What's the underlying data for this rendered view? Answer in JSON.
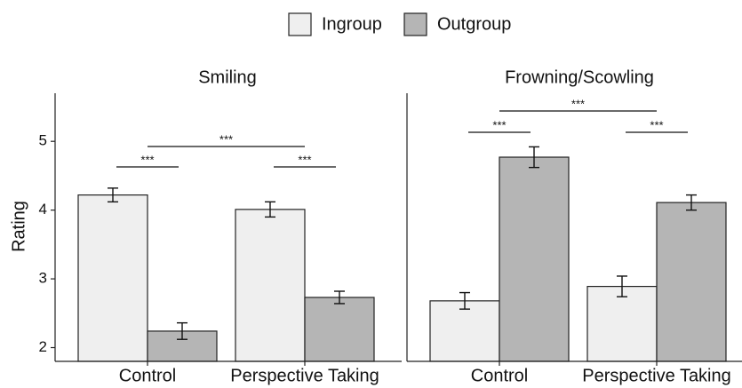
{
  "legend": {
    "position": "top"
  },
  "chart_data": [
    {
      "type": "bar",
      "title": "Smiling",
      "y_label": "Rating",
      "categories": [
        "Control",
        "Perspective Taking"
      ],
      "series": [
        {
          "name": "Ingroup",
          "color": "#efefef",
          "values": [
            4.22,
            4.01
          ],
          "errors": [
            0.1,
            0.11
          ]
        },
        {
          "name": "Outgroup",
          "color": "#b5b5b5",
          "values": [
            2.24,
            2.73
          ],
          "errors": [
            0.12,
            0.09
          ]
        }
      ],
      "ylim": [
        1.8,
        5.7
      ],
      "yticks": [
        2,
        3,
        4,
        5
      ],
      "annotations": [
        "***",
        "***",
        "***"
      ]
    },
    {
      "type": "bar",
      "title": "Frowning/Scowling",
      "categories": [
        "Control",
        "Perspective Taking"
      ],
      "series": [
        {
          "name": "Ingroup",
          "color": "#efefef",
          "values": [
            2.68,
            2.89
          ],
          "errors": [
            0.12,
            0.15
          ]
        },
        {
          "name": "Outgroup",
          "color": "#b5b5b5",
          "values": [
            4.77,
            4.11
          ],
          "errors": [
            0.15,
            0.11
          ]
        }
      ],
      "ylim": [
        1.8,
        5.7
      ],
      "annotations": [
        "***",
        "***",
        "***"
      ]
    }
  ]
}
